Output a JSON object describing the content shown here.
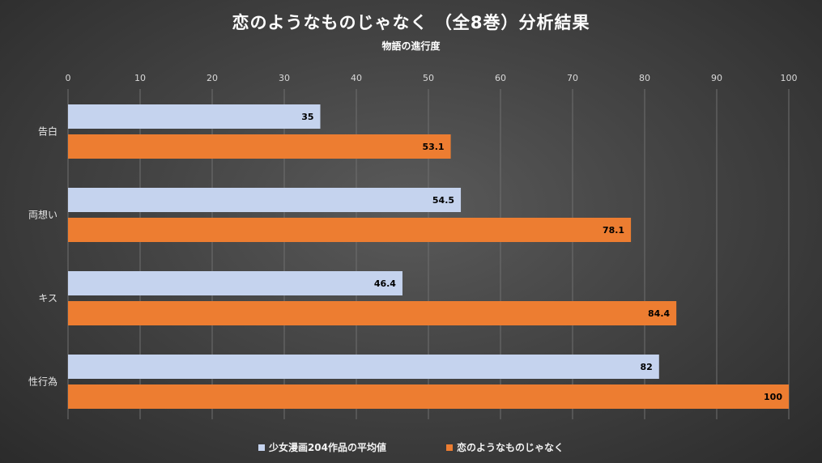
{
  "chart_data": {
    "type": "bar",
    "orientation": "horizontal",
    "title": "恋のようなものじゃなく （全8巻）分析結果",
    "subtitle": "物語の進行度",
    "categories": [
      "告白",
      "両想い",
      "キス",
      "性行為"
    ],
    "series": [
      {
        "name": "少女漫画204作品の平均値",
        "color": "#c5d3ee",
        "values": [
          35,
          54.5,
          46.4,
          82
        ]
      },
      {
        "name": "恋のようなものじゃなく",
        "color": "#ed7d31",
        "values": [
          53.1,
          78.1,
          84.4,
          100
        ]
      }
    ],
    "xlim": [
      0,
      100
    ],
    "xticks": [
      0,
      10,
      20,
      30,
      40,
      50,
      60,
      70,
      80,
      90,
      100
    ],
    "axis_position": "top",
    "grid": true,
    "legend": "bottom"
  }
}
